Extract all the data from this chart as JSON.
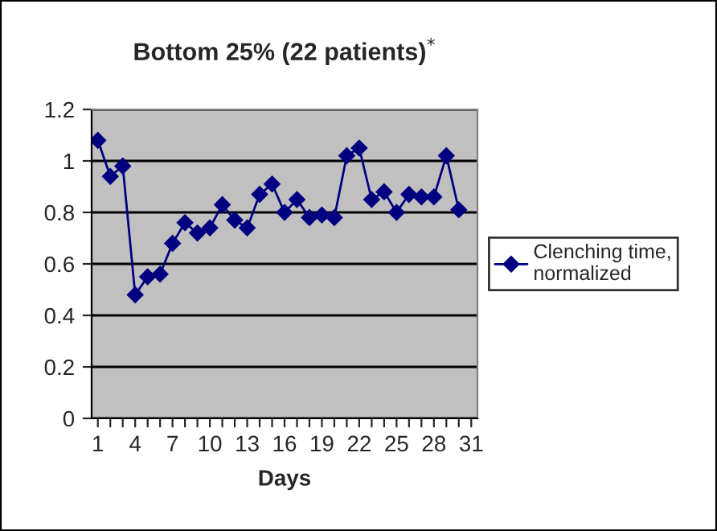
{
  "chart_data": {
    "type": "line",
    "title": "Bottom 25% (22 patients)$^{*}$",
    "xlabel": "Days",
    "categories": [
      "1",
      null,
      null,
      "4",
      null,
      null,
      "7",
      null,
      null,
      "10",
      null,
      null,
      "13",
      null,
      null,
      "16",
      null,
      null,
      "19",
      null,
      null,
      "22",
      null,
      null,
      "25",
      null,
      null,
      "28",
      null,
      null,
      "31"
    ],
    "series": [
      {
        "name": "Clenching time, normalized",
        "color": "#000080",
        "values": [
          1.08,
          0.94,
          0.98,
          0.48,
          0.55,
          0.56,
          0.68,
          0.76,
          0.72,
          0.74,
          0.83,
          0.77,
          0.74,
          0.87,
          0.91,
          0.8,
          0.85,
          0.78,
          0.79,
          0.78,
          1.02,
          1.05,
          0.85,
          0.88,
          0.8,
          0.87,
          0.86,
          0.86,
          1.02,
          0.81,
          null
        ]
      }
    ],
    "ylim": [
      0,
      1.2
    ],
    "yticks": [
      0,
      0.2,
      0.4,
      0.6,
      0.8,
      1,
      1.2
    ],
    "grid": "y",
    "legend": "right",
    "marker": "diamond",
    "line_style": "solid"
  }
}
